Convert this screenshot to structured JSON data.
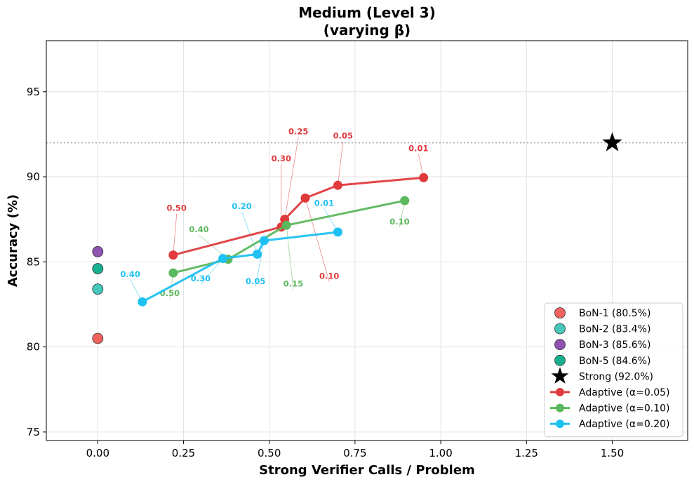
{
  "chart_data": {
    "type": "line",
    "title": [
      "Medium (Level 3)",
      "(varying β)"
    ],
    "xlabel": "Strong Verifier Calls / Problem",
    "ylabel": "Accuracy (%)",
    "xlim": [
      -0.15,
      1.72
    ],
    "ylim": [
      74.5,
      98
    ],
    "xticks": [
      0.0,
      0.25,
      0.5,
      0.75,
      1.0,
      1.25,
      1.5
    ],
    "xtick_labels": [
      "0.00",
      "0.25",
      "0.50",
      "0.75",
      "1.00",
      "1.25",
      "1.50"
    ],
    "yticks": [
      75,
      80,
      85,
      90,
      95
    ],
    "ytick_labels": [
      "75",
      "80",
      "85",
      "90",
      "95"
    ],
    "grid": true,
    "legend_position": "bottom-right",
    "reference_line": {
      "y": 92.0,
      "style": "dotted",
      "color": "#aaaaaa"
    },
    "baselines": [
      {
        "name": "BoN-1 (80.5%)",
        "x": 0.0,
        "y": 80.5,
        "color": "#f0625e",
        "marker": "circle"
      },
      {
        "name": "BoN-2 (83.4%)",
        "x": 0.0,
        "y": 83.4,
        "color": "#45c7bb",
        "marker": "circle"
      },
      {
        "name": "BoN-3 (85.6%)",
        "x": 0.0,
        "y": 85.6,
        "color": "#8e52b0",
        "marker": "circle"
      },
      {
        "name": "BoN-5 (84.6%)",
        "x": 0.0,
        "y": 84.6,
        "color": "#17b08f",
        "marker": "circle"
      },
      {
        "name": "Strong (92.0%)",
        "x": 1.5,
        "y": 92.0,
        "color": "#000000",
        "marker": "star"
      }
    ],
    "series": [
      {
        "name": "Adaptive (α=0.05)",
        "color": "#e03a3c",
        "points": [
          {
            "x": 0.22,
            "y": 85.4,
            "beta": "0.50",
            "label_x": 0.23,
            "label_y": 88.0
          },
          {
            "x": 0.535,
            "y": 87.05,
            "beta": "0.30",
            "label_x": 0.535,
            "label_y": 90.9
          },
          {
            "x": 0.545,
            "y": 87.5,
            "beta": "0.25",
            "label_x": 0.585,
            "label_y": 92.5
          },
          {
            "x": 0.605,
            "y": 88.75,
            "beta": "0.10",
            "label_x": 0.675,
            "label_y": 84.0
          },
          {
            "x": 0.7,
            "y": 89.5,
            "beta": "0.05",
            "label_x": 0.715,
            "label_y": 92.25
          },
          {
            "x": 0.95,
            "y": 89.95,
            "beta": "0.01",
            "label_x": 0.935,
            "label_y": 91.5
          }
        ]
      },
      {
        "name": "Adaptive (α=0.10)",
        "color": "#5cb85c",
        "points": [
          {
            "x": 0.22,
            "y": 84.35,
            "beta": "0.50",
            "label_x": 0.21,
            "label_y": 83.0
          },
          {
            "x": 0.38,
            "y": 85.15,
            "beta": "0.40",
            "label_x": 0.295,
            "label_y": 86.75
          },
          {
            "x": 0.55,
            "y": 87.15,
            "beta": "0.15",
            "label_x": 0.57,
            "label_y": 83.55
          },
          {
            "x": 0.895,
            "y": 88.6,
            "beta": "0.10",
            "label_x": 0.88,
            "label_y": 87.2
          }
        ]
      },
      {
        "name": "Adaptive (α=0.20)",
        "color": "#1fc0f2",
        "points": [
          {
            "x": 0.13,
            "y": 82.65,
            "beta": "0.40",
            "label_x": 0.095,
            "label_y": 84.1
          },
          {
            "x": 0.365,
            "y": 85.2,
            "beta": "0.30",
            "label_x": 0.3,
            "label_y": 83.85
          },
          {
            "x": 0.465,
            "y": 85.45,
            "beta": "0.20",
            "label_x": 0.42,
            "label_y": 88.1
          },
          {
            "x": 0.485,
            "y": 86.25,
            "beta": "0.05",
            "label_x": 0.46,
            "label_y": 83.7
          },
          {
            "x": 0.7,
            "y": 86.75,
            "beta": "0.01",
            "label_x": 0.66,
            "label_y": 88.3
          }
        ]
      }
    ]
  }
}
